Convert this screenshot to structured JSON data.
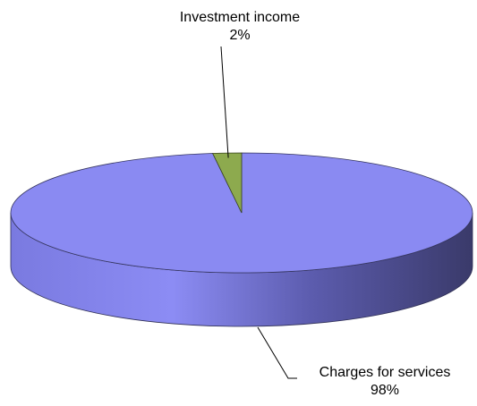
{
  "chart_data": {
    "type": "pie",
    "style": "3d",
    "slices": [
      {
        "label": "Charges for services",
        "value": 98,
        "value_label": "98%",
        "color": "#8a8af2"
      },
      {
        "label": "Investment income",
        "value": 2,
        "value_label": "2%",
        "color": "#8daa4e"
      }
    ],
    "legend": "none",
    "start_angle": "top",
    "direction": "clockwise"
  }
}
